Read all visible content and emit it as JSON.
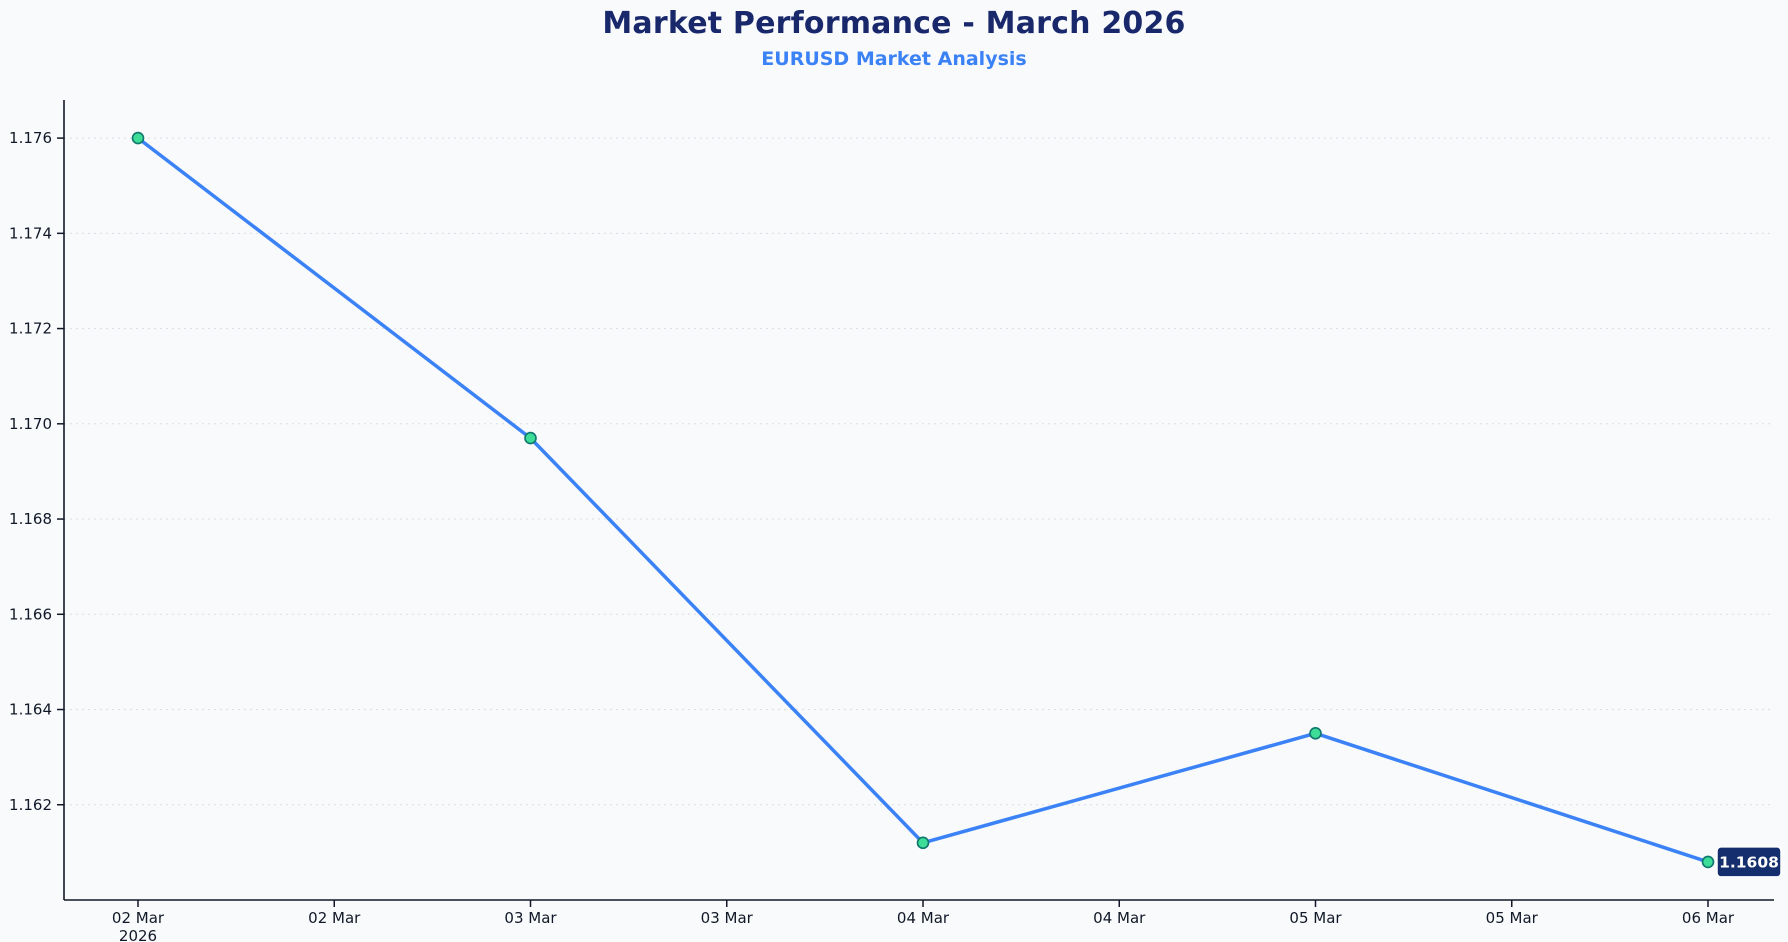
{
  "page": {
    "background": "#f8fafc"
  },
  "chart_data": {
    "type": "line",
    "title": "Market Performance - March 2026",
    "subtitle": "EURUSD Market Analysis",
    "series": [
      {
        "name": "EURUSD",
        "x": [
          "02 Mar",
          "03 Mar",
          "04 Mar",
          "05 Mar",
          "06 Mar"
        ],
        "values": [
          1.176,
          1.1697,
          1.1612,
          1.1635,
          1.1608
        ]
      }
    ],
    "x_tick_labels": [
      "02 Mar",
      "02 Mar",
      "03 Mar",
      "03 Mar",
      "04 Mar",
      "04 Mar",
      "05 Mar",
      "05 Mar",
      "06 Mar"
    ],
    "x_first_tick_year": "2026",
    "y_tick_labels": [
      "1.176",
      "1.174",
      "1.172",
      "1.170",
      "1.168",
      "1.166",
      "1.164",
      "1.162"
    ],
    "ylim": [
      1.16,
      1.1768
    ],
    "grid": "horizontal-dotted",
    "legend": "none",
    "last_point_label": "1.1608",
    "colors": {
      "line": "#3b82f6",
      "marker_fill": "#3ddc97",
      "marker_stroke": "#0f766e",
      "badge_bg": "#152f6e",
      "badge_border": "#ffffff",
      "badge_text": "#ffffff",
      "title": "#19276b",
      "subtitle": "#3b82f6",
      "axis": "#111827",
      "tick_text": "#111827",
      "grid": "#d7dce5",
      "background": "#f8fafc"
    }
  }
}
